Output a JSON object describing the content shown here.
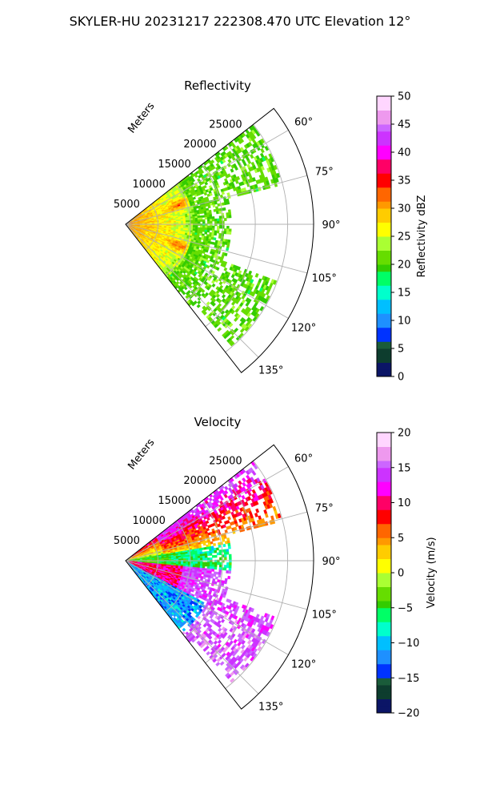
{
  "suptitle": "SKYLER-HU  20231217  222308.470 UTC Elevation 12°",
  "chart_data": [
    {
      "type": "polar-sector",
      "title": "Reflectivity",
      "radial_label": "Meters",
      "range_ticks": [
        "5000",
        "10000",
        "15000",
        "20000",
        "25000"
      ],
      "range_values": [
        5000,
        10000,
        15000,
        20000,
        25000
      ],
      "rmax": 29000,
      "theta_ticks": [
        "60°",
        "75°",
        "90°",
        "105°",
        "120°",
        "135°"
      ],
      "theta_values": [
        60,
        75,
        90,
        105,
        120,
        135
      ],
      "theta_min": 52,
      "theta_max": 142,
      "colorbar": {
        "label": "Reflectivity dBZ",
        "min": 0,
        "max": 50,
        "ticks": [
          "0",
          "5",
          "10",
          "15",
          "20",
          "25",
          "30",
          "35",
          "40",
          "45",
          "50"
        ],
        "tick_values": [
          0,
          5,
          10,
          15,
          20,
          25,
          30,
          35,
          40,
          45,
          50
        ]
      }
    },
    {
      "type": "polar-sector",
      "title": "Velocity",
      "radial_label": "Meters",
      "range_ticks": [
        "5000",
        "10000",
        "15000",
        "20000",
        "25000"
      ],
      "range_values": [
        5000,
        10000,
        15000,
        20000,
        25000
      ],
      "rmax": 29000,
      "theta_ticks": [
        "60°",
        "75°",
        "90°",
        "105°",
        "120°",
        "135°"
      ],
      "theta_values": [
        60,
        75,
        90,
        105,
        120,
        135
      ],
      "theta_min": 52,
      "theta_max": 142,
      "colorbar": {
        "label": "Velocity (m/s)",
        "min": -20,
        "max": 20,
        "ticks": [
          "−20",
          "−15",
          "−10",
          "−5",
          "0",
          "5",
          "10",
          "15",
          "20"
        ],
        "tick_values": [
          -20,
          -15,
          -10,
          -5,
          0,
          5,
          10,
          15,
          20
        ]
      }
    }
  ],
  "colormap": {
    "stops": [
      "#0b1566",
      "#0d3d2e",
      "#1a5c3a",
      "#0033ff",
      "#1e90ff",
      "#00bfff",
      "#00ffcc",
      "#00ff66",
      "#33cc00",
      "#66dd00",
      "#aaff33",
      "#ffff00",
      "#ffcc00",
      "#ff9900",
      "#ff6600",
      "#ff0000",
      "#ff0066",
      "#ff00ff",
      "#cc33ff",
      "#cc66ff",
      "#ee99ee",
      "#ffd6ff"
    ]
  }
}
